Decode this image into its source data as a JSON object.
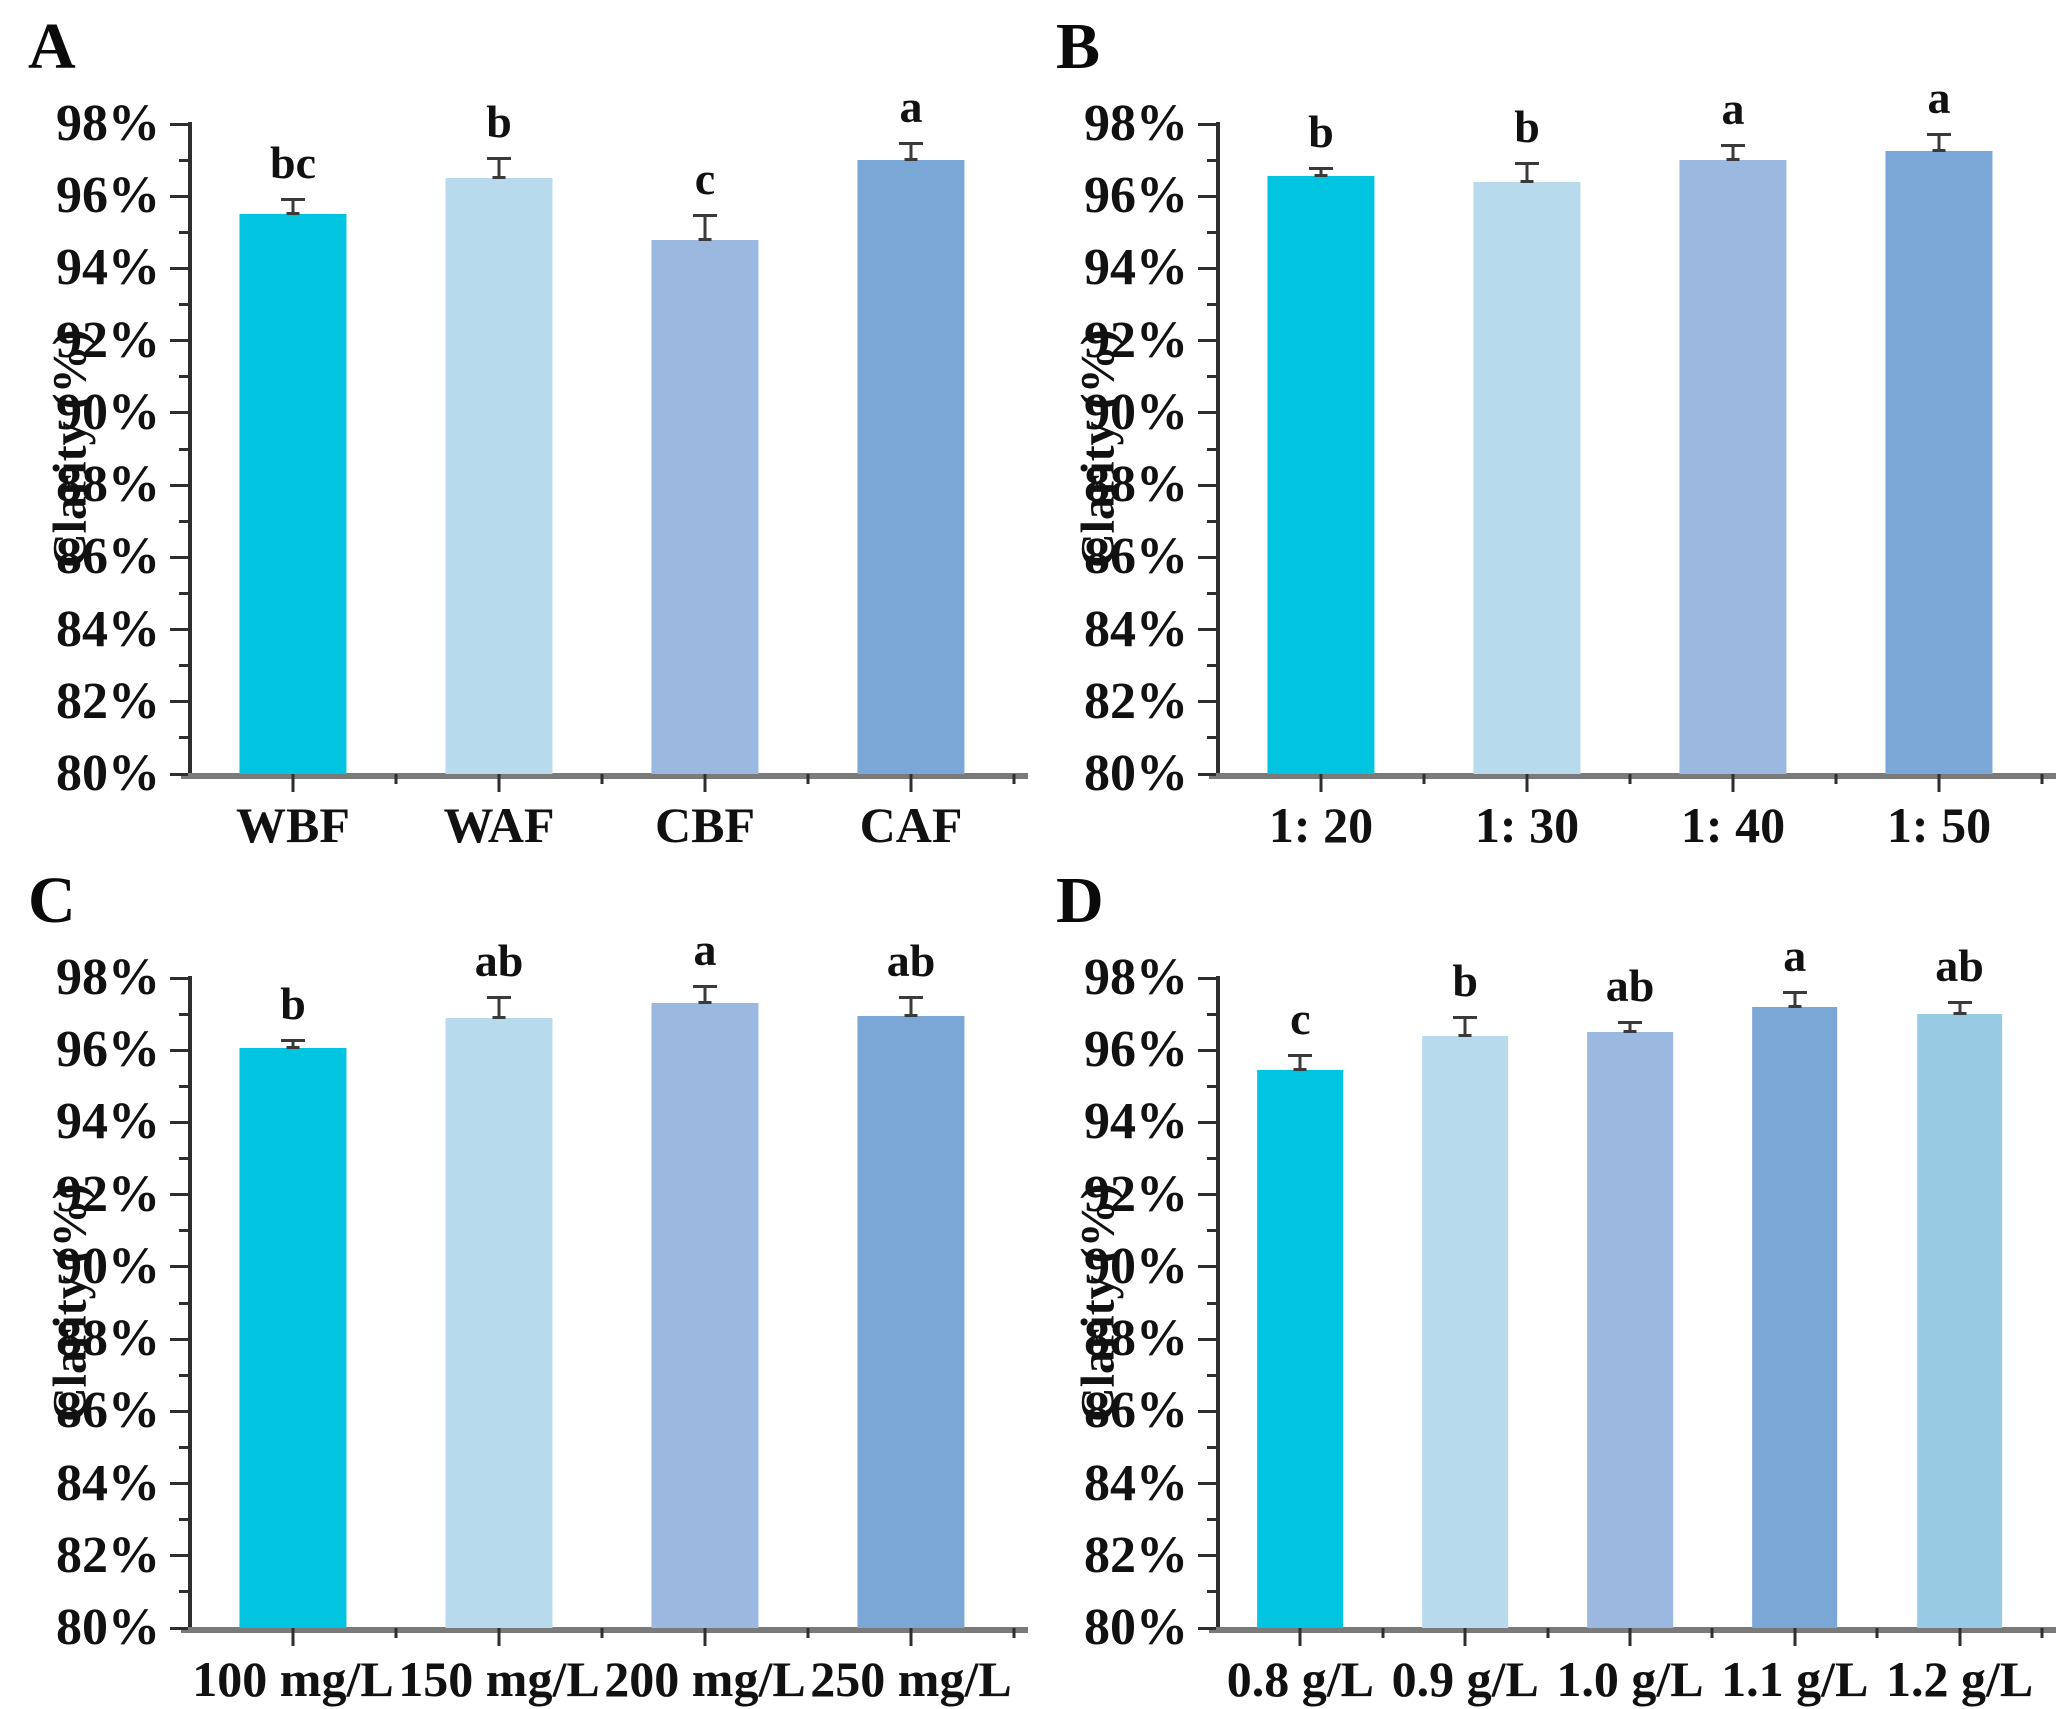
{
  "figure": {
    "background": "#ffffff",
    "panel_letters": [
      "A",
      "B",
      "C",
      "D"
    ],
    "bar_palette": {
      "cyan": "#00C4E0",
      "pale_blue": "#B7DBEC",
      "periwinkle": "#9AB8E0",
      "steel_blue": "#7BA7D7",
      "light_sky": "#98CBE3"
    },
    "axis_color": "#2e2e2e",
    "baseline_color": "#7a7a7a"
  },
  "chart_data": [
    {
      "type": "bar",
      "panel_label": "A",
      "title": "",
      "xlabel": "",
      "ylabel": "Clarity (%)",
      "ylim": [
        80,
        98
      ],
      "ytick_values": [
        80,
        82,
        84,
        86,
        88,
        90,
        92,
        94,
        96,
        98
      ],
      "ytick_labels": [
        "80%",
        "82%",
        "84%",
        "86%",
        "88%",
        "90%",
        "92%",
        "94%",
        "96%",
        "98%"
      ],
      "grid": false,
      "legend": "none",
      "categories": [
        "WBF",
        "WAF",
        "CBF",
        "CAF"
      ],
      "values": [
        95.5,
        96.5,
        94.8,
        97.0
      ],
      "errors": [
        0.45,
        0.6,
        0.7,
        0.5
      ],
      "sig_letters": [
        "bc",
        "b",
        "c",
        "a"
      ],
      "bar_colors": [
        "#00C4E0",
        "#B7DBEC",
        "#9AB8E0",
        "#7BA7D7"
      ]
    },
    {
      "type": "bar",
      "panel_label": "B",
      "title": "",
      "xlabel": "",
      "ylabel": "Clarity (%)",
      "ylim": [
        80,
        98
      ],
      "ytick_values": [
        80,
        82,
        84,
        86,
        88,
        90,
        92,
        94,
        96,
        98
      ],
      "ytick_labels": [
        "80%",
        "82%",
        "84%",
        "86%",
        "88%",
        "90%",
        "92%",
        "94%",
        "96%",
        "98%"
      ],
      "grid": false,
      "legend": "none",
      "categories": [
        "1: 20",
        "1: 30",
        "1: 40",
        "1: 50"
      ],
      "values": [
        96.55,
        96.4,
        97.0,
        97.25
      ],
      "errors": [
        0.25,
        0.55,
        0.45,
        0.5
      ],
      "sig_letters": [
        "b",
        "b",
        "a",
        "a"
      ],
      "bar_colors": [
        "#00C4E0",
        "#B7DBEC",
        "#9AB8E0",
        "#7BA7D7"
      ]
    },
    {
      "type": "bar",
      "panel_label": "C",
      "title": "",
      "xlabel": "",
      "ylabel": "Clarity (%)",
      "ylim": [
        80,
        98
      ],
      "ytick_values": [
        80,
        82,
        84,
        86,
        88,
        90,
        92,
        94,
        96,
        98
      ],
      "ytick_labels": [
        "80%",
        "82%",
        "84%",
        "86%",
        "88%",
        "90%",
        "92%",
        "94%",
        "96%",
        "98%"
      ],
      "grid": false,
      "legend": "none",
      "categories": [
        "100 mg/L",
        "150 mg/L",
        "200 mg/L",
        "250 mg/L"
      ],
      "values": [
        96.05,
        96.9,
        97.3,
        96.95
      ],
      "errors": [
        0.25,
        0.6,
        0.5,
        0.55
      ],
      "sig_letters": [
        "b",
        "ab",
        "a",
        "ab"
      ],
      "bar_colors": [
        "#00C4E0",
        "#B7DBEC",
        "#9AB8E0",
        "#7BA7D7"
      ]
    },
    {
      "type": "bar",
      "panel_label": "D",
      "title": "",
      "xlabel": "",
      "ylabel": "Clarity (%)",
      "ylim": [
        80,
        98
      ],
      "ytick_values": [
        80,
        82,
        84,
        86,
        88,
        90,
        92,
        94,
        96,
        98
      ],
      "ytick_labels": [
        "80%",
        "82%",
        "84%",
        "86%",
        "88%",
        "90%",
        "92%",
        "94%",
        "96%",
        "98%"
      ],
      "grid": false,
      "legend": "none",
      "categories": [
        "0.8 g/L",
        "0.9 g/L",
        "1.0 g/L",
        "1.1 g/L",
        "1.2 g/L"
      ],
      "values": [
        95.45,
        96.4,
        96.5,
        97.2,
        97.0
      ],
      "errors": [
        0.45,
        0.55,
        0.3,
        0.45,
        0.35
      ],
      "sig_letters": [
        "c",
        "b",
        "ab",
        "a",
        "ab"
      ],
      "bar_colors": [
        "#00C4E0",
        "#B7DBEC",
        "#9AB8E0",
        "#7BA7D7",
        "#98CBE3"
      ]
    }
  ]
}
